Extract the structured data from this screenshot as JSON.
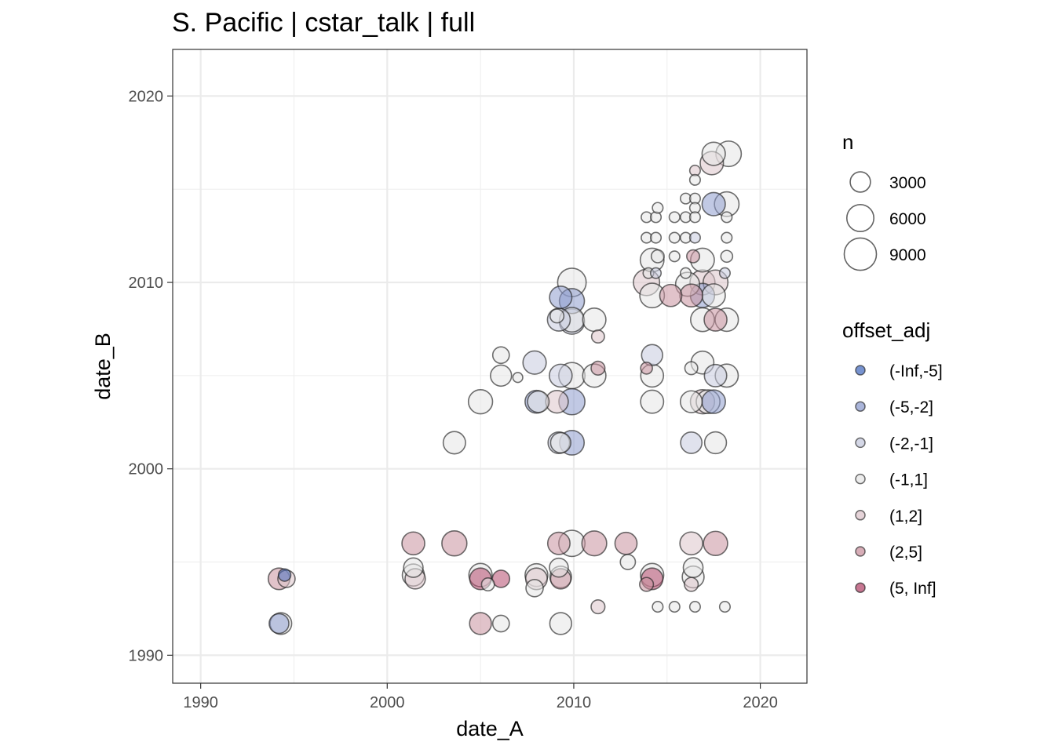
{
  "chart_data": {
    "type": "scatter",
    "title": "S. Pacific | cstar_talk | full",
    "xlabel": "date_A",
    "ylabel": "date_B",
    "xlim": [
      1988.5,
      2022.5
    ],
    "ylim": [
      1988.5,
      2022.5
    ],
    "x_ticks": [
      "1990",
      "2000",
      "2010",
      "2020"
    ],
    "y_ticks": [
      "1990",
      "2000",
      "2010",
      "2020"
    ],
    "grid": true,
    "legend_position": "right",
    "size_legend": {
      "title": "n",
      "entries": [
        {
          "label": "3000",
          "n": 3000
        },
        {
          "label": "6000",
          "n": 6000
        },
        {
          "label": "9000",
          "n": 9000
        }
      ]
    },
    "color_legend": {
      "title": "offset_adj",
      "entries": [
        {
          "label": "(-Inf,-5]",
          "color": "#4a6fc0"
        },
        {
          "label": "(-5,-2]",
          "color": "#8e9ccd"
        },
        {
          "label": "(-2,-1]",
          "color": "#c6cade"
        },
        {
          "label": "(-1,1]",
          "color": "#e6e6e6"
        },
        {
          "label": "(1,2]",
          "color": "#dcc4cb"
        },
        {
          "label": "(2,5]",
          "color": "#c9929f"
        },
        {
          "label": "(5, Inf]",
          "color": "#b44a6e"
        }
      ]
    },
    "points": [
      {
        "x": 1994.2,
        "y": 1991.7,
        "n": 2800,
        "offset": "(-5,-2]"
      },
      {
        "x": 1994.3,
        "y": 1991.7,
        "n": 3500,
        "offset": "(-1,1]"
      },
      {
        "x": 1994.2,
        "y": 1994.1,
        "n": 3500,
        "offset": "(2,5]"
      },
      {
        "x": 1994.6,
        "y": 1994.1,
        "n": 2000,
        "offset": "(1,2]"
      },
      {
        "x": 1994.5,
        "y": 1994.3,
        "n": 800,
        "offset": "(-Inf,-5]"
      },
      {
        "x": 2001.4,
        "y": 1996.0,
        "n": 4000,
        "offset": "(2,5]"
      },
      {
        "x": 2001.4,
        "y": 1994.7,
        "n": 2700,
        "offset": "(-1,1]"
      },
      {
        "x": 2001.4,
        "y": 1994.3,
        "n": 3700,
        "offset": "(-1,1]"
      },
      {
        "x": 2001.5,
        "y": 1994.1,
        "n": 3000,
        "offset": "(1,2]"
      },
      {
        "x": 2003.6,
        "y": 1996.0,
        "n": 5000,
        "offset": "(2,5]"
      },
      {
        "x": 2005.0,
        "y": 1994.3,
        "n": 4200,
        "offset": "(-1,1]"
      },
      {
        "x": 2005.0,
        "y": 1994.1,
        "n": 3500,
        "offset": "(5, Inf]"
      },
      {
        "x": 2005.4,
        "y": 1993.8,
        "n": 900,
        "offset": "(-1,1]"
      },
      {
        "x": 2006.1,
        "y": 1994.1,
        "n": 2000,
        "offset": "(5, Inf]"
      },
      {
        "x": 2005.0,
        "y": 1991.7,
        "n": 3600,
        "offset": "(2,5]"
      },
      {
        "x": 2006.1,
        "y": 1991.7,
        "n": 1800,
        "offset": "(-1,1]"
      },
      {
        "x": 2008.0,
        "y": 1994.3,
        "n": 4000,
        "offset": "(-1,1]"
      },
      {
        "x": 2008.0,
        "y": 1994.1,
        "n": 3500,
        "offset": "(1,2]"
      },
      {
        "x": 2007.9,
        "y": 1993.6,
        "n": 2000,
        "offset": "(-1,1]"
      },
      {
        "x": 2009.2,
        "y": 1994.7,
        "n": 2500,
        "offset": "(-1,1]"
      },
      {
        "x": 2009.3,
        "y": 1994.2,
        "n": 3500,
        "offset": "(-1,1]"
      },
      {
        "x": 2009.3,
        "y": 1994.1,
        "n": 3000,
        "offset": "(2,5]"
      },
      {
        "x": 2009.2,
        "y": 1996.0,
        "n": 3800,
        "offset": "(2,5]"
      },
      {
        "x": 2009.9,
        "y": 1996.0,
        "n": 5600,
        "offset": "(-1,1]"
      },
      {
        "x": 2011.1,
        "y": 1996.0,
        "n": 4900,
        "offset": "(2,5]"
      },
      {
        "x": 2009.3,
        "y": 1991.7,
        "n": 3600,
        "offset": "(-1,1]"
      },
      {
        "x": 2011.3,
        "y": 1992.6,
        "n": 1100,
        "offset": "(1,2]"
      },
      {
        "x": 2012.8,
        "y": 1996.0,
        "n": 3700,
        "offset": "(2,5]"
      },
      {
        "x": 2012.9,
        "y": 1995.0,
        "n": 1400,
        "offset": "(-1,1]"
      },
      {
        "x": 2014.2,
        "y": 1994.3,
        "n": 4200,
        "offset": "(-1,1]"
      },
      {
        "x": 2014.2,
        "y": 1994.1,
        "n": 3500,
        "offset": "(5, Inf]"
      },
      {
        "x": 2013.9,
        "y": 1993.8,
        "n": 1100,
        "offset": "(2,5]"
      },
      {
        "x": 2014.5,
        "y": 1992.6,
        "n": 500,
        "offset": "(-1,1]"
      },
      {
        "x": 2015.4,
        "y": 1992.6,
        "n": 500,
        "offset": "(-1,1]"
      },
      {
        "x": 2016.5,
        "y": 1992.6,
        "n": 500,
        "offset": "(-1,1]"
      },
      {
        "x": 2018.1,
        "y": 1992.6,
        "n": 500,
        "offset": "(-1,1]"
      },
      {
        "x": 2016.3,
        "y": 1996.0,
        "n": 4000,
        "offset": "(1,2]"
      },
      {
        "x": 2017.6,
        "y": 1996.0,
        "n": 4600,
        "offset": "(2,5]"
      },
      {
        "x": 2016.4,
        "y": 1994.7,
        "n": 2800,
        "offset": "(-1,1]"
      },
      {
        "x": 2016.4,
        "y": 1994.2,
        "n": 3600,
        "offset": "(-1,1]"
      },
      {
        "x": 2016.3,
        "y": 1993.8,
        "n": 1100,
        "offset": "(1,2]"
      },
      {
        "x": 2003.6,
        "y": 2001.4,
        "n": 3800,
        "offset": "(-1,1]"
      },
      {
        "x": 2005.0,
        "y": 2003.6,
        "n": 4600,
        "offset": "(-1,1]"
      },
      {
        "x": 2006.1,
        "y": 2005.0,
        "n": 3300,
        "offset": "(-1,1]"
      },
      {
        "x": 2006.1,
        "y": 2006.1,
        "n": 1800,
        "offset": "(-1,1]"
      },
      {
        "x": 2007.0,
        "y": 2004.9,
        "n": 400,
        "offset": "(-1,1]"
      },
      {
        "x": 2007.9,
        "y": 2005.7,
        "n": 4200,
        "offset": "(-2,-1]"
      },
      {
        "x": 2008.0,
        "y": 2003.6,
        "n": 4000,
        "offset": "(-5,-2]"
      },
      {
        "x": 2008.1,
        "y": 2003.6,
        "n": 3500,
        "offset": "(-1,1]"
      },
      {
        "x": 2009.1,
        "y": 2003.6,
        "n": 3900,
        "offset": "(1,2]"
      },
      {
        "x": 2009.9,
        "y": 2003.6,
        "n": 5500,
        "offset": "(-5,-2]"
      },
      {
        "x": 2009.2,
        "y": 2001.4,
        "n": 3500,
        "offset": "(-2,-1]"
      },
      {
        "x": 2009.3,
        "y": 2001.4,
        "n": 3000,
        "offset": "(-1,1]"
      },
      {
        "x": 2009.9,
        "y": 2001.4,
        "n": 4800,
        "offset": "(-5,-2]"
      },
      {
        "x": 2009.3,
        "y": 2005.0,
        "n": 4000,
        "offset": "(-2,-1]"
      },
      {
        "x": 2009.9,
        "y": 2005.0,
        "n": 5600,
        "offset": "(-1,1]"
      },
      {
        "x": 2011.1,
        "y": 2005.0,
        "n": 4200,
        "offset": "(-1,1]"
      },
      {
        "x": 2011.3,
        "y": 2005.4,
        "n": 1100,
        "offset": "(2,5]"
      },
      {
        "x": 2009.2,
        "y": 2008.0,
        "n": 4000,
        "offset": "(-2,-1]"
      },
      {
        "x": 2009.1,
        "y": 2008.2,
        "n": 1100,
        "offset": "(-1,1]"
      },
      {
        "x": 2009.9,
        "y": 2008.0,
        "n": 4800,
        "offset": "(-1,1]"
      },
      {
        "x": 2009.9,
        "y": 2007.9,
        "n": 5100,
        "offset": "(-2,-1]"
      },
      {
        "x": 2009.9,
        "y": 2009.0,
        "n": 5000,
        "offset": "(-5,-2]"
      },
      {
        "x": 2009.3,
        "y": 2009.2,
        "n": 3800,
        "offset": "(-5,-2]"
      },
      {
        "x": 2009.9,
        "y": 2010.0,
        "n": 6800,
        "offset": "(-1,1]"
      },
      {
        "x": 2011.1,
        "y": 2008.0,
        "n": 4200,
        "offset": "(-1,1]"
      },
      {
        "x": 2011.3,
        "y": 2007.1,
        "n": 900,
        "offset": "(1,2]"
      },
      {
        "x": 2014.2,
        "y": 2006.1,
        "n": 3300,
        "offset": "(-2,-1]"
      },
      {
        "x": 2014.2,
        "y": 2005.0,
        "n": 4000,
        "offset": "(-1,1]"
      },
      {
        "x": 2013.9,
        "y": 2005.4,
        "n": 700,
        "offset": "(2,5]"
      },
      {
        "x": 2014.2,
        "y": 2003.6,
        "n": 4100,
        "offset": "(-1,1]"
      },
      {
        "x": 2013.9,
        "y": 2010.0,
        "n": 5600,
        "offset": "(1,2]"
      },
      {
        "x": 2014.2,
        "y": 2009.3,
        "n": 4800,
        "offset": "(-1,1]"
      },
      {
        "x": 2014.2,
        "y": 2011.2,
        "n": 4400,
        "offset": "(-1,1]"
      },
      {
        "x": 2014.5,
        "y": 2011.4,
        "n": 900,
        "offset": "(-1,1]"
      },
      {
        "x": 2015.2,
        "y": 2009.3,
        "n": 3700,
        "offset": "(2,5]"
      },
      {
        "x": 2014.0,
        "y": 2010.5,
        "n": 500,
        "offset": "(-1,1]"
      },
      {
        "x": 2014.4,
        "y": 2010.5,
        "n": 500,
        "offset": "(-2,-1]"
      },
      {
        "x": 2013.9,
        "y": 2012.4,
        "n": 500,
        "offset": "(-1,1]"
      },
      {
        "x": 2014.4,
        "y": 2012.4,
        "n": 500,
        "offset": "(-1,1]"
      },
      {
        "x": 2013.9,
        "y": 2013.5,
        "n": 500,
        "offset": "(-1,1]"
      },
      {
        "x": 2014.4,
        "y": 2013.5,
        "n": 500,
        "offset": "(-1,1]"
      },
      {
        "x": 2014.5,
        "y": 2014.0,
        "n": 500,
        "offset": "(-1,1]"
      },
      {
        "x": 2015.4,
        "y": 2011.4,
        "n": 500,
        "offset": "(-1,1]"
      },
      {
        "x": 2015.4,
        "y": 2012.4,
        "n": 500,
        "offset": "(-1,1]"
      },
      {
        "x": 2015.4,
        "y": 2013.5,
        "n": 500,
        "offset": "(-1,1]"
      },
      {
        "x": 2016.0,
        "y": 2014.5,
        "n": 500,
        "offset": "(-1,1]"
      },
      {
        "x": 2016.0,
        "y": 2013.5,
        "n": 500,
        "offset": "(-1,1]"
      },
      {
        "x": 2016.0,
        "y": 2012.4,
        "n": 500,
        "offset": "(-1,1]"
      },
      {
        "x": 2016.0,
        "y": 2010.5,
        "n": 500,
        "offset": "(-1,1]"
      },
      {
        "x": 2016.5,
        "y": 2016.0,
        "n": 500,
        "offset": "(1,2]"
      },
      {
        "x": 2016.5,
        "y": 2015.5,
        "n": 500,
        "offset": "(-1,1]"
      },
      {
        "x": 2016.5,
        "y": 2014.5,
        "n": 500,
        "offset": "(-1,1]"
      },
      {
        "x": 2016.5,
        "y": 2014.0,
        "n": 500,
        "offset": "(-1,1]"
      },
      {
        "x": 2016.5,
        "y": 2013.5,
        "n": 500,
        "offset": "(-1,1]"
      },
      {
        "x": 2016.5,
        "y": 2012.4,
        "n": 500,
        "offset": "(-2,-1]"
      },
      {
        "x": 2016.4,
        "y": 2011.4,
        "n": 900,
        "offset": "(2,5]"
      },
      {
        "x": 2016.1,
        "y": 2009.9,
        "n": 4500,
        "offset": "(-1,1]"
      },
      {
        "x": 2016.3,
        "y": 2009.3,
        "n": 4000,
        "offset": "(2,5]"
      },
      {
        "x": 2016.3,
        "y": 2005.4,
        "n": 900,
        "offset": "(-1,1]"
      },
      {
        "x": 2016.3,
        "y": 2003.6,
        "n": 3600,
        "offset": "(-1,1]"
      },
      {
        "x": 2016.3,
        "y": 2001.4,
        "n": 3400,
        "offset": "(-2,-1]"
      },
      {
        "x": 2016.9,
        "y": 2011.2,
        "n": 4400,
        "offset": "(-1,1]"
      },
      {
        "x": 2016.9,
        "y": 2010.0,
        "n": 5000,
        "offset": "(1,2]"
      },
      {
        "x": 2016.9,
        "y": 2009.3,
        "n": 4600,
        "offset": "(-5,-2]"
      },
      {
        "x": 2016.9,
        "y": 2008.0,
        "n": 4400,
        "offset": "(-1,1]"
      },
      {
        "x": 2016.9,
        "y": 2005.7,
        "n": 4000,
        "offset": "(-1,1]"
      },
      {
        "x": 2016.9,
        "y": 2003.6,
        "n": 4600,
        "offset": "(1,2]"
      },
      {
        "x": 2017.2,
        "y": 2003.6,
        "n": 4400,
        "offset": "(-1,1]"
      },
      {
        "x": 2017.5,
        "y": 2003.6,
        "n": 4300,
        "offset": "(-5,-2]"
      },
      {
        "x": 2017.6,
        "y": 2001.4,
        "n": 3600,
        "offset": "(-1,1]"
      },
      {
        "x": 2017.6,
        "y": 2005.0,
        "n": 3800,
        "offset": "(-2,-1]"
      },
      {
        "x": 2018.2,
        "y": 2005.0,
        "n": 4100,
        "offset": "(-1,1]"
      },
      {
        "x": 2017.6,
        "y": 2008.0,
        "n": 4000,
        "offset": "(2,5]"
      },
      {
        "x": 2018.2,
        "y": 2008.0,
        "n": 4200,
        "offset": "(-1,1]"
      },
      {
        "x": 2017.5,
        "y": 2009.3,
        "n": 4200,
        "offset": "(-1,1]"
      },
      {
        "x": 2017.6,
        "y": 2010.0,
        "n": 4900,
        "offset": "(1,2]"
      },
      {
        "x": 2018.1,
        "y": 2010.5,
        "n": 500,
        "offset": "(-2,-1]"
      },
      {
        "x": 2018.2,
        "y": 2011.4,
        "n": 700,
        "offset": "(-1,1]"
      },
      {
        "x": 2018.2,
        "y": 2012.4,
        "n": 500,
        "offset": "(-1,1]"
      },
      {
        "x": 2018.2,
        "y": 2013.5,
        "n": 500,
        "offset": "(-1,1]"
      },
      {
        "x": 2017.5,
        "y": 2014.2,
        "n": 4200,
        "offset": "(-5,-2]"
      },
      {
        "x": 2018.2,
        "y": 2014.2,
        "n": 4800,
        "offset": "(-1,1]"
      },
      {
        "x": 2017.4,
        "y": 2016.4,
        "n": 4200,
        "offset": "(1,2]"
      },
      {
        "x": 2017.5,
        "y": 2016.9,
        "n": 4200,
        "offset": "(-1,1]"
      },
      {
        "x": 2018.3,
        "y": 2016.9,
        "n": 5200,
        "offset": "(-1,1]"
      }
    ]
  }
}
